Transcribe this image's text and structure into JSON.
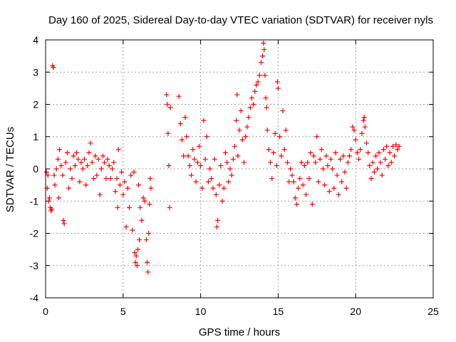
{
  "chart_data": {
    "type": "scatter",
    "title": "Day 160 of 2025, Sidereal Day-to-day VTEC variation (SDTVAR) for receiver nyls",
    "xlabel": "GPS time / hours",
    "ylabel": "SDTVAR / TECUs",
    "xlim": [
      0,
      25
    ],
    "ylim": [
      -4,
      4
    ],
    "xticks": [
      "0",
      "5",
      "10",
      "15",
      "20",
      "25"
    ],
    "yticks": [
      "4",
      "3",
      "2",
      "1",
      "0",
      "-1",
      "-2",
      "-3",
      "-4"
    ],
    "grid": true,
    "marker": "plus",
    "series": [
      {
        "name": "SDTVAR",
        "color": "#ff0000",
        "points": [
          [
            0.05,
            -0.1
          ],
          [
            0.1,
            -0.6
          ],
          [
            0.15,
            -0.2
          ],
          [
            0.2,
            -1.0
          ],
          [
            0.25,
            -0.9
          ],
          [
            0.3,
            -1.2
          ],
          [
            0.35,
            -1.3
          ],
          [
            0.4,
            -1.25
          ],
          [
            0.45,
            3.2
          ],
          [
            0.5,
            3.15
          ],
          [
            0.55,
            -0.2
          ],
          [
            0.6,
            -0.5
          ],
          [
            0.7,
            0.0
          ],
          [
            0.8,
            0.3
          ],
          [
            0.85,
            -0.9
          ],
          [
            0.9,
            0.6
          ],
          [
            1.0,
            0.1
          ],
          [
            1.1,
            -0.2
          ],
          [
            1.15,
            -1.6
          ],
          [
            1.2,
            -1.7
          ],
          [
            1.3,
            0.2
          ],
          [
            1.4,
            0.5
          ],
          [
            1.5,
            -0.6
          ],
          [
            1.6,
            0.0
          ],
          [
            1.7,
            -0.3
          ],
          [
            1.8,
            0.4
          ],
          [
            1.9,
            0.1
          ],
          [
            2.0,
            0.5
          ],
          [
            2.1,
            0.3
          ],
          [
            2.2,
            -0.4
          ],
          [
            2.3,
            0.2
          ],
          [
            2.4,
            0.0
          ],
          [
            2.5,
            0.3
          ],
          [
            2.6,
            -0.5
          ],
          [
            2.7,
            0.1
          ],
          [
            2.8,
            0.5
          ],
          [
            2.9,
            0.8
          ],
          [
            3.0,
            0.2
          ],
          [
            3.1,
            -0.3
          ],
          [
            3.2,
            0.4
          ],
          [
            3.3,
            -0.2
          ],
          [
            3.4,
            0.3
          ],
          [
            3.5,
            -0.8
          ],
          [
            3.6,
            0.0
          ],
          [
            3.7,
            0.4
          ],
          [
            3.8,
            0.2
          ],
          [
            3.9,
            -0.3
          ],
          [
            4.0,
            0.3
          ],
          [
            4.1,
            0.1
          ],
          [
            4.2,
            -0.3
          ],
          [
            4.3,
            0.0
          ],
          [
            4.4,
            0.2
          ],
          [
            4.5,
            -0.7
          ],
          [
            4.6,
            -0.3
          ],
          [
            4.65,
            -1.2
          ],
          [
            4.7,
            0.6
          ],
          [
            4.8,
            -0.5
          ],
          [
            4.9,
            -0.1
          ],
          [
            5.0,
            -0.8
          ],
          [
            5.1,
            -0.4
          ],
          [
            5.2,
            -1.8
          ],
          [
            5.3,
            -0.6
          ],
          [
            5.4,
            -1.2
          ],
          [
            5.5,
            -0.2
          ],
          [
            5.6,
            -1.9
          ],
          [
            5.7,
            -0.1
          ],
          [
            5.75,
            -2.6
          ],
          [
            5.8,
            -2.9
          ],
          [
            5.85,
            -2.7
          ],
          [
            5.9,
            -3.0
          ],
          [
            5.95,
            -2.5
          ],
          [
            6.0,
            -0.5
          ],
          [
            6.05,
            -2.2
          ],
          [
            6.1,
            -1.2
          ],
          [
            6.2,
            -1.6
          ],
          [
            6.3,
            -0.9
          ],
          [
            6.4,
            -1.0
          ],
          [
            6.5,
            -2.2
          ],
          [
            6.55,
            -2.9
          ],
          [
            6.6,
            -3.2
          ],
          [
            6.65,
            -2.0
          ],
          [
            6.7,
            -1.1
          ],
          [
            6.75,
            -0.3
          ],
          [
            6.8,
            -0.6
          ],
          [
            7.8,
            2.3
          ],
          [
            7.85,
            2.0
          ],
          [
            7.9,
            1.1
          ],
          [
            7.95,
            0.1
          ],
          [
            8.0,
            -1.2
          ],
          [
            8.05,
            1.9
          ],
          [
            8.6,
            2.25
          ],
          [
            8.7,
            1.4
          ],
          [
            8.8,
            0.9
          ],
          [
            8.9,
            0.4
          ],
          [
            9.0,
            1.6
          ],
          [
            9.1,
            1.0
          ],
          [
            9.2,
            0.4
          ],
          [
            9.3,
            0.1
          ],
          [
            9.4,
            -0.2
          ],
          [
            9.5,
            0.6
          ],
          [
            9.6,
            0.3
          ],
          [
            9.7,
            -0.4
          ],
          [
            9.8,
            0.2
          ],
          [
            9.9,
            0.7
          ],
          [
            10.0,
            0.1
          ],
          [
            10.1,
            -0.6
          ],
          [
            10.2,
            1.5
          ],
          [
            10.3,
            0.3
          ],
          [
            10.4,
            1.0
          ],
          [
            10.5,
            -0.4
          ],
          [
            10.6,
            0.0
          ],
          [
            10.7,
            -0.3
          ],
          [
            10.8,
            -0.6
          ],
          [
            10.9,
            0.3
          ],
          [
            11.0,
            -0.8
          ],
          [
            11.05,
            -1.8
          ],
          [
            11.1,
            -1.6
          ],
          [
            11.2,
            -0.5
          ],
          [
            11.3,
            0.1
          ],
          [
            11.4,
            -1.0
          ],
          [
            11.5,
            -0.6
          ],
          [
            11.6,
            0.5
          ],
          [
            11.7,
            0.2
          ],
          [
            11.8,
            -0.4
          ],
          [
            11.9,
            0.0
          ],
          [
            12.0,
            -0.2
          ],
          [
            12.1,
            0.3
          ],
          [
            12.2,
            0.7
          ],
          [
            12.3,
            1.5
          ],
          [
            12.35,
            2.3
          ],
          [
            12.4,
            0.4
          ],
          [
            12.5,
            1.2
          ],
          [
            12.6,
            1.8
          ],
          [
            12.7,
            0.9
          ],
          [
            12.8,
            0.2
          ],
          [
            12.9,
            1.0
          ],
          [
            13.0,
            1.3
          ],
          [
            13.1,
            1.6
          ],
          [
            13.2,
            1.9
          ],
          [
            13.3,
            2.2
          ],
          [
            13.4,
            2.0
          ],
          [
            13.5,
            2.4
          ],
          [
            13.6,
            2.6
          ],
          [
            13.7,
            2.7
          ],
          [
            13.8,
            2.9
          ],
          [
            13.9,
            3.3
          ],
          [
            14.0,
            3.5
          ],
          [
            14.05,
            3.9
          ],
          [
            14.1,
            3.7
          ],
          [
            14.15,
            2.9
          ],
          [
            14.2,
            2.2
          ],
          [
            14.25,
            1.9
          ],
          [
            14.3,
            1.2
          ],
          [
            14.4,
            0.6
          ],
          [
            14.5,
            0.2
          ],
          [
            14.6,
            -0.3
          ],
          [
            14.7,
            0.5
          ],
          [
            14.8,
            1.1
          ],
          [
            14.9,
            0.1
          ],
          [
            14.95,
            2.7
          ],
          [
            15.0,
            2.5
          ],
          [
            15.1,
            1.0
          ],
          [
            15.2,
            0.4
          ],
          [
            15.3,
            1.8
          ],
          [
            15.4,
            0.6
          ],
          [
            15.5,
            1.2
          ],
          [
            15.6,
            0.2
          ],
          [
            15.7,
            -0.4
          ],
          [
            15.8,
            0.0
          ],
          [
            15.9,
            -0.2
          ],
          [
            16.0,
            -0.4
          ],
          [
            16.1,
            -0.9
          ],
          [
            16.2,
            -1.1
          ],
          [
            16.3,
            -0.6
          ],
          [
            16.4,
            -0.3
          ],
          [
            16.5,
            0.2
          ],
          [
            16.6,
            -0.5
          ],
          [
            16.7,
            0.1
          ],
          [
            16.8,
            -0.8
          ],
          [
            16.9,
            0.2
          ],
          [
            17.0,
            -0.3
          ],
          [
            17.1,
            0.5
          ],
          [
            17.2,
            -1.1
          ],
          [
            17.3,
            0.4
          ],
          [
            17.4,
            0.2
          ],
          [
            17.5,
            1.0
          ],
          [
            17.6,
            -0.4
          ],
          [
            17.7,
            0.3
          ],
          [
            17.8,
            0.6
          ],
          [
            17.9,
            0.0
          ],
          [
            18.0,
            -0.5
          ],
          [
            18.1,
            0.4
          ],
          [
            18.2,
            0.1
          ],
          [
            18.3,
            -0.7
          ],
          [
            18.4,
            0.3
          ],
          [
            18.5,
            0.0
          ],
          [
            18.6,
            -0.6
          ],
          [
            18.7,
            0.5
          ],
          [
            18.8,
            -0.2
          ],
          [
            18.9,
            -0.8
          ],
          [
            19.0,
            0.3
          ],
          [
            19.1,
            -0.4
          ],
          [
            19.2,
            0.4
          ],
          [
            19.3,
            -0.1
          ],
          [
            19.4,
            -0.6
          ],
          [
            19.5,
            0.2
          ],
          [
            19.6,
            0.4
          ],
          [
            19.7,
            0.6
          ],
          [
            19.8,
            1.3
          ],
          [
            19.9,
            1.2
          ],
          [
            20.0,
            0.9
          ],
          [
            20.1,
            0.5
          ],
          [
            20.2,
            0.3
          ],
          [
            20.3,
            0.6
          ],
          [
            20.4,
            1.1
          ],
          [
            20.5,
            1.5
          ],
          [
            20.55,
            1.6
          ],
          [
            20.6,
            1.3
          ],
          [
            20.7,
            0.8
          ],
          [
            20.8,
            0.5
          ],
          [
            20.9,
            0.1
          ],
          [
            21.0,
            -0.3
          ],
          [
            21.1,
            0.2
          ],
          [
            21.2,
            -0.1
          ],
          [
            21.3,
            0.4
          ],
          [
            21.4,
            0.0
          ],
          [
            21.5,
            0.5
          ],
          [
            21.6,
            0.2
          ],
          [
            21.7,
            -0.2
          ],
          [
            21.8,
            0.6
          ],
          [
            21.9,
            0.3
          ],
          [
            22.0,
            0.7
          ],
          [
            22.1,
            0.1
          ],
          [
            22.2,
            0.5
          ],
          [
            22.3,
            0.2
          ],
          [
            22.4,
            0.7
          ],
          [
            22.5,
            0.4
          ],
          [
            22.6,
            0.75
          ],
          [
            22.7,
            0.6
          ],
          [
            22.8,
            0.7
          ]
        ]
      }
    ]
  }
}
